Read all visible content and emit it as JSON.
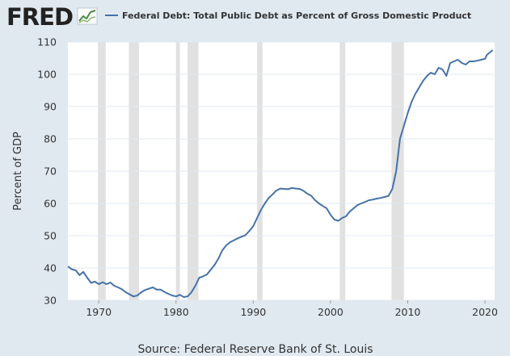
{
  "brand": {
    "name": "FRED"
  },
  "legend": {
    "label": "Federal Debt: Total Public Debt as Percent of Gross Domestic Product",
    "color": "#4572a7"
  },
  "source": "Source: Federal Reserve Bank of St. Louis",
  "colors": {
    "background": "#e1e9f0",
    "plot_background": "#ffffff",
    "line": "#4572a7",
    "recession": "#e1e1e1",
    "grid": "#e1e9f0"
  },
  "chart_data": {
    "type": "line",
    "ylabel": "Percent of GDP",
    "xlabel": "",
    "xlim": [
      1966,
      2021.25
    ],
    "ylim": [
      30,
      110
    ],
    "x_ticks": [
      1970,
      1980,
      1990,
      2000,
      2010,
      2020
    ],
    "y_ticks": [
      30,
      40,
      50,
      60,
      70,
      80,
      90,
      100,
      110
    ],
    "grid": true,
    "recessions": [
      [
        1969.9,
        1970.9
      ],
      [
        1973.9,
        1975.2
      ],
      [
        1980.0,
        1980.5
      ],
      [
        1981.5,
        1982.9
      ],
      [
        1990.5,
        1991.2
      ],
      [
        2001.2,
        2001.9
      ],
      [
        2007.9,
        2009.5
      ]
    ],
    "series": [
      {
        "x": [
          1966.0,
          1966.5,
          1967.0,
          1967.5,
          1968.0,
          1968.5,
          1969.0,
          1969.5,
          1970.0,
          1970.5,
          1971.0,
          1971.5,
          1972.0,
          1972.5,
          1973.0,
          1973.5,
          1974.0,
          1974.5,
          1975.0,
          1975.5,
          1976.0,
          1976.5,
          1977.0,
          1977.5,
          1978.0,
          1978.5,
          1979.0,
          1979.5,
          1980.0,
          1980.5,
          1981.0,
          1981.5,
          1982.0,
          1982.5,
          1983.0,
          1983.5,
          1984.0,
          1984.5,
          1985.0,
          1985.5,
          1986.0,
          1986.5,
          1987.0,
          1987.5,
          1988.0,
          1988.5,
          1989.0,
          1989.5,
          1990.0,
          1990.5,
          1991.0,
          1991.5,
          1992.0,
          1992.5,
          1993.0,
          1993.5,
          1994.0,
          1994.5,
          1995.0,
          1995.5,
          1996.0,
          1996.5,
          1997.0,
          1997.5,
          1998.0,
          1998.5,
          1999.0,
          1999.5,
          2000.0,
          2000.5,
          2001.0,
          2001.5,
          2002.0,
          2002.5,
          2003.0,
          2003.5,
          2004.0,
          2004.5,
          2005.0,
          2005.5,
          2006.0,
          2006.5,
          2007.0,
          2007.5,
          2008.0,
          2008.5,
          2009.0,
          2009.5,
          2010.0,
          2010.5,
          2011.0,
          2011.5,
          2012.0,
          2012.5,
          2013.0,
          2013.5,
          2014.0,
          2014.5,
          2015.0,
          2015.5,
          2016.0,
          2016.5,
          2017.0,
          2017.5,
          2018.0,
          2018.5,
          2019.0,
          2019.5,
          2020.0,
          2020.25,
          2020.5,
          2021.0
        ],
        "values": [
          40.5,
          39.6,
          39.3,
          37.8,
          38.8,
          37.0,
          35.4,
          35.8,
          35.0,
          35.6,
          35.0,
          35.5,
          34.5,
          34.0,
          33.4,
          32.5,
          31.8,
          31.2,
          31.5,
          32.5,
          33.2,
          33.6,
          34.0,
          33.3,
          33.3,
          32.6,
          32.0,
          31.5,
          31.2,
          31.7,
          31.0,
          31.2,
          32.5,
          34.5,
          37.0,
          37.4,
          38.0,
          39.5,
          41.0,
          43.0,
          45.5,
          47.0,
          48.0,
          48.6,
          49.2,
          49.7,
          50.2,
          51.5,
          53.0,
          55.5,
          58.0,
          60.0,
          61.7,
          62.8,
          64.0,
          64.6,
          64.5,
          64.4,
          64.8,
          64.6,
          64.5,
          63.9,
          63.0,
          62.4,
          61.0,
          60.0,
          59.2,
          58.5,
          56.5,
          55.0,
          54.6,
          55.5,
          56.0,
          57.5,
          58.5,
          59.5,
          60.0,
          60.5,
          61.0,
          61.2,
          61.5,
          61.7,
          62.0,
          62.3,
          64.5,
          70.0,
          80.0,
          84.0,
          88.0,
          91.5,
          94.0,
          96.0,
          98.0,
          99.5,
          100.5,
          100.0,
          102.0,
          101.5,
          99.5,
          103.5,
          104.0,
          104.5,
          103.5,
          103.0,
          104.0,
          104.0,
          104.2,
          104.5,
          104.8,
          106.0,
          106.5,
          107.5
        ]
      }
    ]
  }
}
